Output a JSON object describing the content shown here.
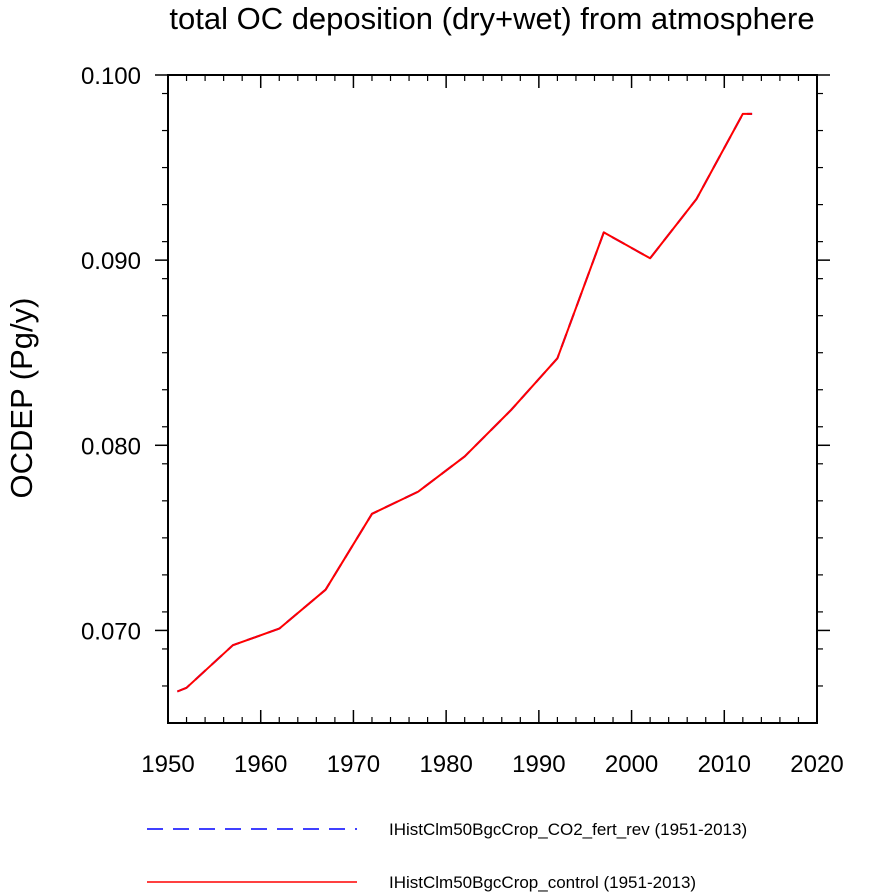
{
  "chart_data": {
    "type": "line",
    "title": "total OC deposition (dry+wet) from atmosphere",
    "xlabel": "",
    "ylabel": "OCDEP  (Pg/y)",
    "xlim": [
      1950,
      2020
    ],
    "ylim": [
      0.065,
      0.1
    ],
    "x_ticks": [
      1950,
      1960,
      1970,
      1980,
      1990,
      2000,
      2010,
      2020
    ],
    "y_ticks": [
      0.07,
      0.08,
      0.09,
      0.1
    ],
    "y_tick_labels": [
      "0.070",
      "0.080",
      "0.090",
      "0.100"
    ],
    "x": [
      1951,
      1952,
      1957,
      1962,
      1967,
      1972,
      1977,
      1982,
      1987,
      1992,
      1997,
      2002,
      2007,
      2012,
      2013
    ],
    "series": [
      {
        "name": "IHistClm50BgcCrop_CO2_fert_rev (1951-2013)",
        "color": "#0000ff",
        "style": "dashed",
        "values": [
          0.0667,
          0.0669,
          0.0692,
          0.0701,
          0.0722,
          0.0763,
          0.0775,
          0.0794,
          0.0819,
          0.0847,
          0.0915,
          0.0901,
          0.0933,
          0.0979,
          0.0979
        ]
      },
      {
        "name": "IHistClm50BgcCrop_control (1951-2013)",
        "color": "#ff0000",
        "style": "solid",
        "values": [
          0.0667,
          0.0669,
          0.0692,
          0.0701,
          0.0722,
          0.0763,
          0.0775,
          0.0794,
          0.0819,
          0.0847,
          0.0915,
          0.0901,
          0.0933,
          0.0979,
          0.0979
        ]
      }
    ],
    "grid": false,
    "legend_position": "bottom"
  }
}
